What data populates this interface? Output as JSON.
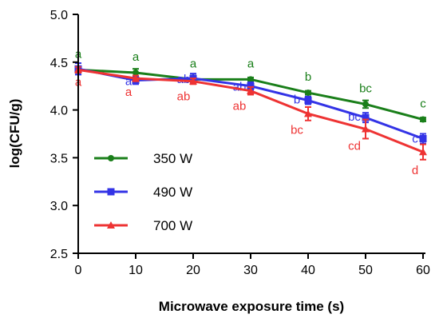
{
  "chart_data": {
    "type": "line",
    "xlabel": "Microwave exposure time (s)",
    "ylabel": "log(CFU/g)",
    "xlim": [
      0,
      60
    ],
    "ylim": [
      2.5,
      5.0
    ],
    "xticks": [
      "0",
      "10",
      "20",
      "30",
      "40",
      "50",
      "60"
    ],
    "yticks": [
      "2.5",
      "3.0",
      "3.5",
      "4.0",
      "4.5",
      "5.0"
    ],
    "x": [
      0,
      10,
      20,
      30,
      40,
      50,
      60
    ],
    "grid": false,
    "legend_position": "lower-left",
    "series": [
      {
        "name": "350 W",
        "color": "#1a7f1a",
        "marker": "circle",
        "values": [
          4.42,
          4.39,
          4.32,
          4.32,
          4.18,
          4.06,
          3.9
        ],
        "errors": [
          0.03,
          0.04,
          0.04,
          0.02,
          0.02,
          0.04,
          0.02
        ],
        "letters": [
          "a",
          "a",
          "a",
          "a",
          "b",
          "bc",
          "c"
        ]
      },
      {
        "name": "490 W",
        "color": "#3333e6",
        "marker": "square",
        "values": [
          4.43,
          4.31,
          4.33,
          4.25,
          4.1,
          3.92,
          3.7
        ],
        "errors": [
          0.06,
          0.04,
          0.05,
          0.04,
          0.04,
          0.05,
          0.05
        ],
        "letters": [
          "a",
          "a",
          "ab",
          "ab",
          "b",
          "bc",
          "c"
        ]
      },
      {
        "name": "700 W",
        "color": "#ee3333",
        "marker": "triangle",
        "values": [
          4.42,
          4.33,
          4.3,
          4.2,
          3.96,
          3.8,
          3.56
        ],
        "errors": [
          0.03,
          0.03,
          0.03,
          0.04,
          0.07,
          0.1,
          0.08
        ],
        "letters": [
          "a",
          "a",
          "ab",
          "ab",
          "bc",
          "cd",
          "d"
        ]
      }
    ]
  }
}
